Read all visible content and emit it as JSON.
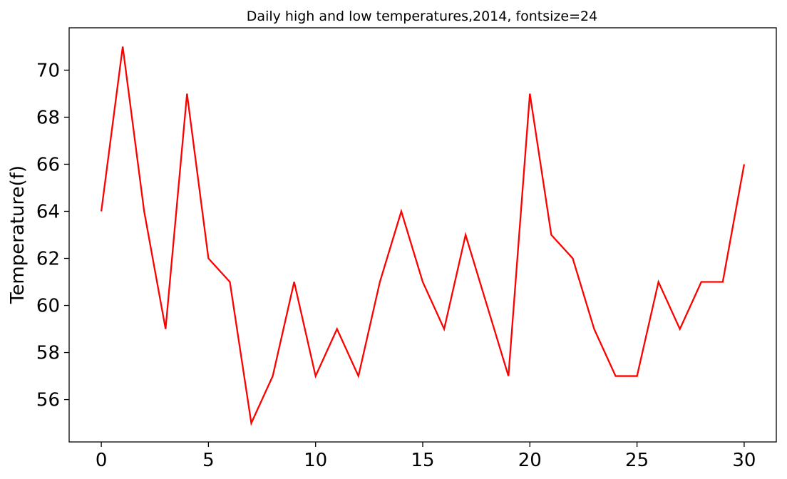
{
  "chart_data": {
    "type": "line",
    "title": "Daily high and low temperatures,2014, fontsize=24",
    "xlabel": "",
    "ylabel": "Temperature(f)",
    "xlim": [
      -1.5,
      31.5
    ],
    "ylim": [
      54.2,
      71.8
    ],
    "xticks": [
      0,
      5,
      10,
      15,
      20,
      25,
      30
    ],
    "yticks": [
      56,
      58,
      60,
      62,
      64,
      66,
      68,
      70
    ],
    "grid": false,
    "series": [
      {
        "color": "#ff0000",
        "x": [
          0,
          1,
          2,
          3,
          4,
          5,
          6,
          7,
          8,
          9,
          10,
          11,
          12,
          13,
          14,
          15,
          16,
          17,
          18,
          19,
          20,
          21,
          22,
          23,
          24,
          25,
          26,
          27,
          28,
          29,
          30
        ],
        "values": [
          64,
          71,
          64,
          59,
          69,
          62,
          61,
          55,
          57,
          61,
          57,
          59,
          57,
          61,
          64,
          61,
          59,
          63,
          60,
          57,
          69,
          63,
          62,
          59,
          57,
          57,
          61,
          59,
          61,
          61,
          66
        ]
      }
    ]
  }
}
